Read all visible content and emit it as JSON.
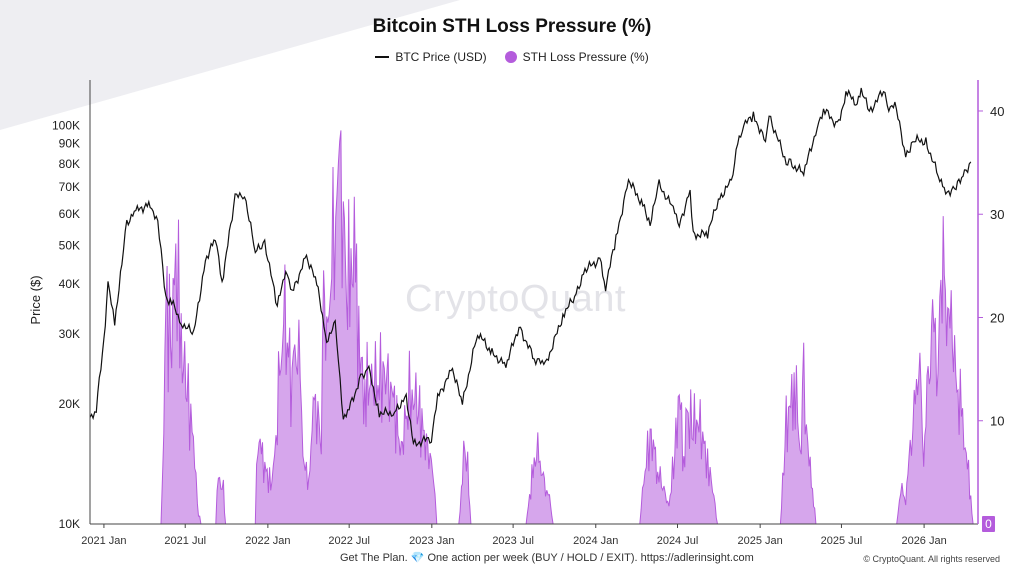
{
  "chart_data": {
    "type": "line",
    "title": "Bitcoin STH Loss Pressure (%)",
    "legend": [
      {
        "label": "BTC Price (USD)",
        "color": "#111111",
        "marker": "line"
      },
      {
        "label": "STH Loss Pressure (%)",
        "color": "#b45cdc",
        "marker": "dot"
      }
    ],
    "legend_position": "top-center",
    "ylabel_left": "Price ($)",
    "yscale_left": "log",
    "ylim_left": [
      10000,
      130000
    ],
    "yticks_left": [
      {
        "value": 10000,
        "label": "10K"
      },
      {
        "value": 20000,
        "label": "20K"
      },
      {
        "value": 30000,
        "label": "30K"
      },
      {
        "value": 40000,
        "label": "40K"
      },
      {
        "value": 50000,
        "label": "50K"
      },
      {
        "value": 60000,
        "label": "60K"
      },
      {
        "value": 70000,
        "label": "70K"
      },
      {
        "value": 80000,
        "label": "80K"
      },
      {
        "value": 90000,
        "label": "90K"
      },
      {
        "value": 100000,
        "label": "100K"
      }
    ],
    "ylim_right": [
      0,
      43
    ],
    "yticks_right": [
      {
        "value": 0,
        "label": "0"
      },
      {
        "value": 10,
        "label": "10"
      },
      {
        "value": 20,
        "label": "20"
      },
      {
        "value": 30,
        "label": "30"
      },
      {
        "value": 40,
        "label": "40"
      }
    ],
    "right_axis_last_value": "0",
    "xlim": [
      "2020-12-01",
      "2026-05-01"
    ],
    "xticks": [
      {
        "date": "2021-01-01",
        "label": "2021 Jan"
      },
      {
        "date": "2021-07-01",
        "label": "2021 Jul"
      },
      {
        "date": "2022-01-01",
        "label": "2022 Jan"
      },
      {
        "date": "2022-07-01",
        "label": "2022 Jul"
      },
      {
        "date": "2023-01-01",
        "label": "2023 Jan"
      },
      {
        "date": "2023-07-01",
        "label": "2023 Jul"
      },
      {
        "date": "2024-01-01",
        "label": "2024 Jan"
      },
      {
        "date": "2024-07-01",
        "label": "2024 Jul"
      },
      {
        "date": "2025-01-01",
        "label": "2025 Jan"
      },
      {
        "date": "2025-07-01",
        "label": "2025 Jul"
      },
      {
        "date": "2026-01-01",
        "label": "2026 Jan"
      }
    ],
    "grid": false,
    "price_series": {
      "name": "BTC Price (USD)",
      "x": [
        "2020-12-01",
        "2020-12-15",
        "2021-01-01",
        "2021-01-10",
        "2021-01-25",
        "2021-02-10",
        "2021-02-21",
        "2021-03-13",
        "2021-04-14",
        "2021-05-01",
        "2021-05-19",
        "2021-06-01",
        "2021-06-22",
        "2021-07-20",
        "2021-08-15",
        "2021-09-06",
        "2021-09-21",
        "2021-10-20",
        "2021-11-10",
        "2021-12-04",
        "2021-12-25",
        "2022-01-22",
        "2022-02-10",
        "2022-02-24",
        "2022-03-28",
        "2022-04-20",
        "2022-05-12",
        "2022-05-31",
        "2022-06-18",
        "2022-07-01",
        "2022-07-30",
        "2022-08-14",
        "2022-09-06",
        "2022-10-10",
        "2022-11-05",
        "2022-11-21",
        "2022-12-31",
        "2023-01-14",
        "2023-02-16",
        "2023-03-10",
        "2023-04-13",
        "2023-05-15",
        "2023-06-15",
        "2023-07-14",
        "2023-08-17",
        "2023-09-11",
        "2023-10-23",
        "2023-11-15",
        "2023-12-08",
        "2024-01-10",
        "2024-01-23",
        "2024-02-15",
        "2024-03-14",
        "2024-04-15",
        "2024-05-01",
        "2024-05-21",
        "2024-06-25",
        "2024-07-05",
        "2024-07-29",
        "2024-08-05",
        "2024-09-06",
        "2024-09-30",
        "2024-10-29",
        "2024-11-12",
        "2024-11-22",
        "2024-12-17",
        "2025-01-13",
        "2025-01-21",
        "2025-02-28",
        "2025-03-10",
        "2025-04-08",
        "2025-05-08",
        "2025-05-22",
        "2025-06-22",
        "2025-07-14",
        "2025-08-02",
        "2025-08-14",
        "2025-09-01",
        "2025-10-06",
        "2025-10-11",
        "2025-10-28",
        "2025-11-21",
        "2025-12-10",
        "2026-01-05",
        "2026-02-05",
        "2026-02-18",
        "2026-03-10",
        "2026-04-01",
        "2026-04-15"
      ],
      "y": [
        18500,
        19400,
        29000,
        40000,
        32000,
        45000,
        57000,
        61000,
        63500,
        57000,
        37000,
        36000,
        32000,
        30000,
        46000,
        52000,
        40500,
        66000,
        67500,
        48000,
        51000,
        35000,
        44000,
        38000,
        47000,
        40000,
        29000,
        31500,
        18500,
        19500,
        23800,
        24300,
        19000,
        19000,
        21000,
        15800,
        16500,
        20800,
        24500,
        20000,
        30200,
        26800,
        25000,
        31300,
        26000,
        25000,
        34000,
        37000,
        43500,
        46000,
        39500,
        52000,
        73000,
        63000,
        57000,
        71000,
        61000,
        56000,
        69000,
        53000,
        53500,
        65000,
        72500,
        89000,
        99000,
        106000,
        91000,
        106000,
        81000,
        80000,
        76000,
        99000,
        110000,
        100000,
        122000,
        112000,
        123000,
        108000,
        124000,
        110000,
        114000,
        84000,
        92000,
        91000,
        73000,
        68000,
        69000,
        76000,
        81000
      ]
    },
    "loss_series": {
      "name": "STH Loss Pressure (%)",
      "x": [
        "2020-12-01",
        "2021-05-08",
        "2021-05-12",
        "2021-05-19",
        "2021-06-01",
        "2021-06-10",
        "2021-06-22",
        "2021-07-05",
        "2021-07-22",
        "2021-07-28",
        "2021-08-05",
        "2021-09-07",
        "2021-09-10",
        "2021-09-24",
        "2021-09-29",
        "2021-12-04",
        "2021-12-10",
        "2021-12-20",
        "2022-01-10",
        "2022-01-22",
        "2022-01-30",
        "2022-02-08",
        "2022-02-24",
        "2022-03-08",
        "2022-03-20",
        "2022-04-02",
        "2022-04-12",
        "2022-04-30",
        "2022-05-05",
        "2022-05-12",
        "2022-05-20",
        "2022-06-01",
        "2022-06-10",
        "2022-06-18",
        "2022-06-25",
        "2022-07-05",
        "2022-07-15",
        "2022-07-25",
        "2022-08-05",
        "2022-08-20",
        "2022-09-06",
        "2022-09-20",
        "2022-10-10",
        "2022-10-25",
        "2022-11-09",
        "2022-11-21",
        "2022-12-05",
        "2022-12-20",
        "2023-01-08",
        "2023-01-12",
        "2023-03-02",
        "2023-03-08",
        "2023-03-10",
        "2023-03-16",
        "2023-03-22",
        "2023-03-29",
        "2023-07-30",
        "2023-08-17",
        "2023-08-25",
        "2023-09-04",
        "2023-09-11",
        "2023-09-20",
        "2023-09-28",
        "2024-04-08",
        "2024-04-17",
        "2024-05-01",
        "2024-05-08",
        "2024-05-18",
        "2024-06-12",
        "2024-06-25",
        "2024-07-05",
        "2024-07-15",
        "2024-07-22",
        "2024-08-05",
        "2024-08-15",
        "2024-09-06",
        "2024-09-20",
        "2024-09-28",
        "2025-02-15",
        "2025-02-28",
        "2025-03-10",
        "2025-03-20",
        "2025-03-31",
        "2025-04-08",
        "2025-04-20",
        "2025-04-30",
        "2025-05-05",
        "2025-11-01",
        "2025-11-10",
        "2025-11-21",
        "2025-12-01",
        "2025-12-10",
        "2025-12-20",
        "2025-12-31",
        "2026-01-10",
        "2026-01-20",
        "2026-02-01",
        "2026-02-05",
        "2026-02-15",
        "2026-02-25",
        "2026-03-05",
        "2026-03-15",
        "2026-03-25",
        "2026-04-05",
        "2026-04-15",
        "2026-04-20"
      ],
      "y": [
        0,
        0,
        6,
        25,
        20,
        30,
        20,
        15,
        8,
        2,
        0,
        0,
        5,
        4,
        0,
        0,
        10,
        7,
        4,
        13,
        20,
        22,
        16,
        24,
        8,
        4,
        14,
        10,
        28,
        20,
        26,
        38,
        42,
        35,
        25,
        30,
        28,
        18,
        15,
        16,
        16,
        17,
        13,
        8,
        14,
        15,
        12,
        9,
        5,
        0,
        0,
        4,
        7,
        8,
        6,
        0,
        0,
        7,
        8,
        6,
        4,
        3,
        0,
        0,
        5,
        10,
        9,
        6,
        2,
        8,
        15,
        7,
        12,
        11,
        12,
        7,
        3,
        0,
        0,
        11,
        13,
        16,
        8,
        15,
        7,
        3,
        0,
        0,
        4,
        3,
        8,
        12,
        20,
        8,
        15,
        22,
        20,
        28,
        25,
        23,
        21,
        15,
        12,
        8,
        3,
        0
      ]
    }
  },
  "watermark": "CryptoQuant",
  "footer": {
    "prefix": "Get The Plan.",
    "gem": "💎",
    "suffix": "One action per week (BUY / HOLD / EXIT). https://adlerinsight.com"
  },
  "copyright": "© CryptoQuant. All rights reserved"
}
